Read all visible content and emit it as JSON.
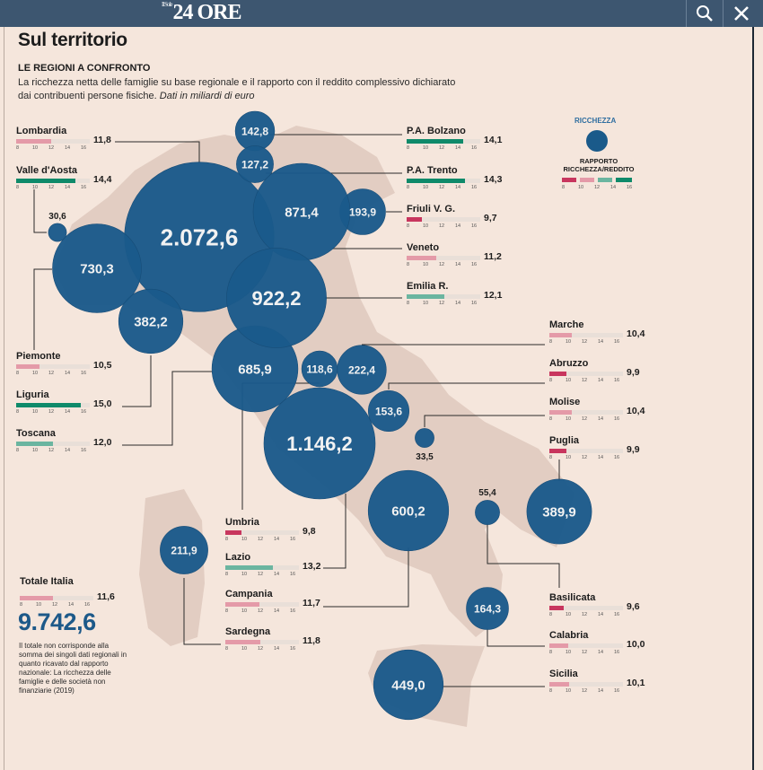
{
  "header": {
    "logo_prefix": "Il Sole",
    "logo": "24 ORE",
    "search_icon": "search-icon",
    "close_icon": "close-icon"
  },
  "title": "Sul territorio",
  "subtitle": "LE REGIONI A CONFRONTO",
  "intro_main": "La ricchezza netta delle famiglie su base regionale e il rapporto con il reddito complessivo dichiarato dai contribuenti persone fisiche.",
  "intro_italic": "Dati in miliardi di euro",
  "legend": {
    "size_label": "RICCHEZZA",
    "ratio_label": "RAPPORTO RICCHEZZA/REDDITO",
    "ticks": [
      "8",
      "10",
      "12",
      "14",
      "16"
    ]
  },
  "colors": {
    "bubble": "#1a5a8a",
    "map": "#e2cdc2",
    "low": "#c8365e",
    "midlow": "#e49aa8",
    "midhigh": "#6bb5a0",
    "high": "#0f8a6a",
    "header": "#3d5670"
  },
  "ticks": [
    "8",
    "10",
    "12",
    "14",
    "16"
  ],
  "regions": [
    {
      "name": "Lombardia",
      "wealth": "2.072,6",
      "wealth_value": 2072.6,
      "ratio": "11,8",
      "ratio_value": 11.8
    },
    {
      "name": "Valle d'Aosta",
      "wealth": "30,6",
      "wealth_value": 30.6,
      "ratio": "14,4",
      "ratio_value": 14.4
    },
    {
      "name": "Piemonte",
      "wealth": "730,3",
      "wealth_value": 730.3,
      "ratio": "10,5",
      "ratio_value": 10.5
    },
    {
      "name": "Liguria",
      "wealth": "382,2",
      "wealth_value": 382.2,
      "ratio": "15,0",
      "ratio_value": 15.0
    },
    {
      "name": "Toscana",
      "wealth": "685,9",
      "wealth_value": 685.9,
      "ratio": "12,0",
      "ratio_value": 12.0
    },
    {
      "name": "P.A. Bolzano",
      "wealth": "142,8",
      "wealth_value": 142.8,
      "ratio": "14,1",
      "ratio_value": 14.1
    },
    {
      "name": "P.A. Trento",
      "wealth": "127,2",
      "wealth_value": 127.2,
      "ratio": "14,3",
      "ratio_value": 14.3
    },
    {
      "name": "Friuli V. G.",
      "wealth": "193,9",
      "wealth_value": 193.9,
      "ratio": "9,7",
      "ratio_value": 9.7
    },
    {
      "name": "Veneto",
      "wealth": "871,4",
      "wealth_value": 871.4,
      "ratio": "11,2",
      "ratio_value": 11.2
    },
    {
      "name": "Emilia R.",
      "wealth": "922,2",
      "wealth_value": 922.2,
      "ratio": "12,1",
      "ratio_value": 12.1
    },
    {
      "name": "Marche",
      "wealth": "222,4",
      "wealth_value": 222.4,
      "ratio": "10,4",
      "ratio_value": 10.4
    },
    {
      "name": "Abruzzo",
      "wealth": "153,6",
      "wealth_value": 153.6,
      "ratio": "9,9",
      "ratio_value": 9.9
    },
    {
      "name": "Molise",
      "wealth": "33,5",
      "wealth_value": 33.5,
      "ratio": "10,4",
      "ratio_value": 10.4
    },
    {
      "name": "Puglia",
      "wealth": "389,9",
      "wealth_value": 389.9,
      "ratio": "9,9",
      "ratio_value": 9.9
    },
    {
      "name": "Umbria",
      "wealth": "118,6",
      "wealth_value": 118.6,
      "ratio": "9,8",
      "ratio_value": 9.8
    },
    {
      "name": "Lazio",
      "wealth": "1.146,2",
      "wealth_value": 1146.2,
      "ratio": "13,2",
      "ratio_value": 13.2
    },
    {
      "name": "Campania",
      "wealth": "600,2",
      "wealth_value": 600.2,
      "ratio": "11,7",
      "ratio_value": 11.7
    },
    {
      "name": "Sardegna",
      "wealth": "211,9",
      "wealth_value": 211.9,
      "ratio": "11,8",
      "ratio_value": 11.8
    },
    {
      "name": "Basilicata",
      "wealth": "55,4",
      "wealth_value": 55.4,
      "ratio": "9,6",
      "ratio_value": 9.6
    },
    {
      "name": "Calabria",
      "wealth": "164,3",
      "wealth_value": 164.3,
      "ratio": "10,0",
      "ratio_value": 10.0
    },
    {
      "name": "Sicilia",
      "wealth": "449,0",
      "wealth_value": 449.0,
      "ratio": "10,1",
      "ratio_value": 10.1
    }
  ],
  "total": {
    "name": "Totale Italia",
    "ratio": "11,6",
    "ratio_value": 11.6,
    "value": "9.742,6",
    "note": "Il totale non corrisponde alla somma dei singoli dati regionali in quanto ricavato dal rapporto nazionale: La ricchezza delle famiglie e delle società non finanziarie (2019)"
  }
}
